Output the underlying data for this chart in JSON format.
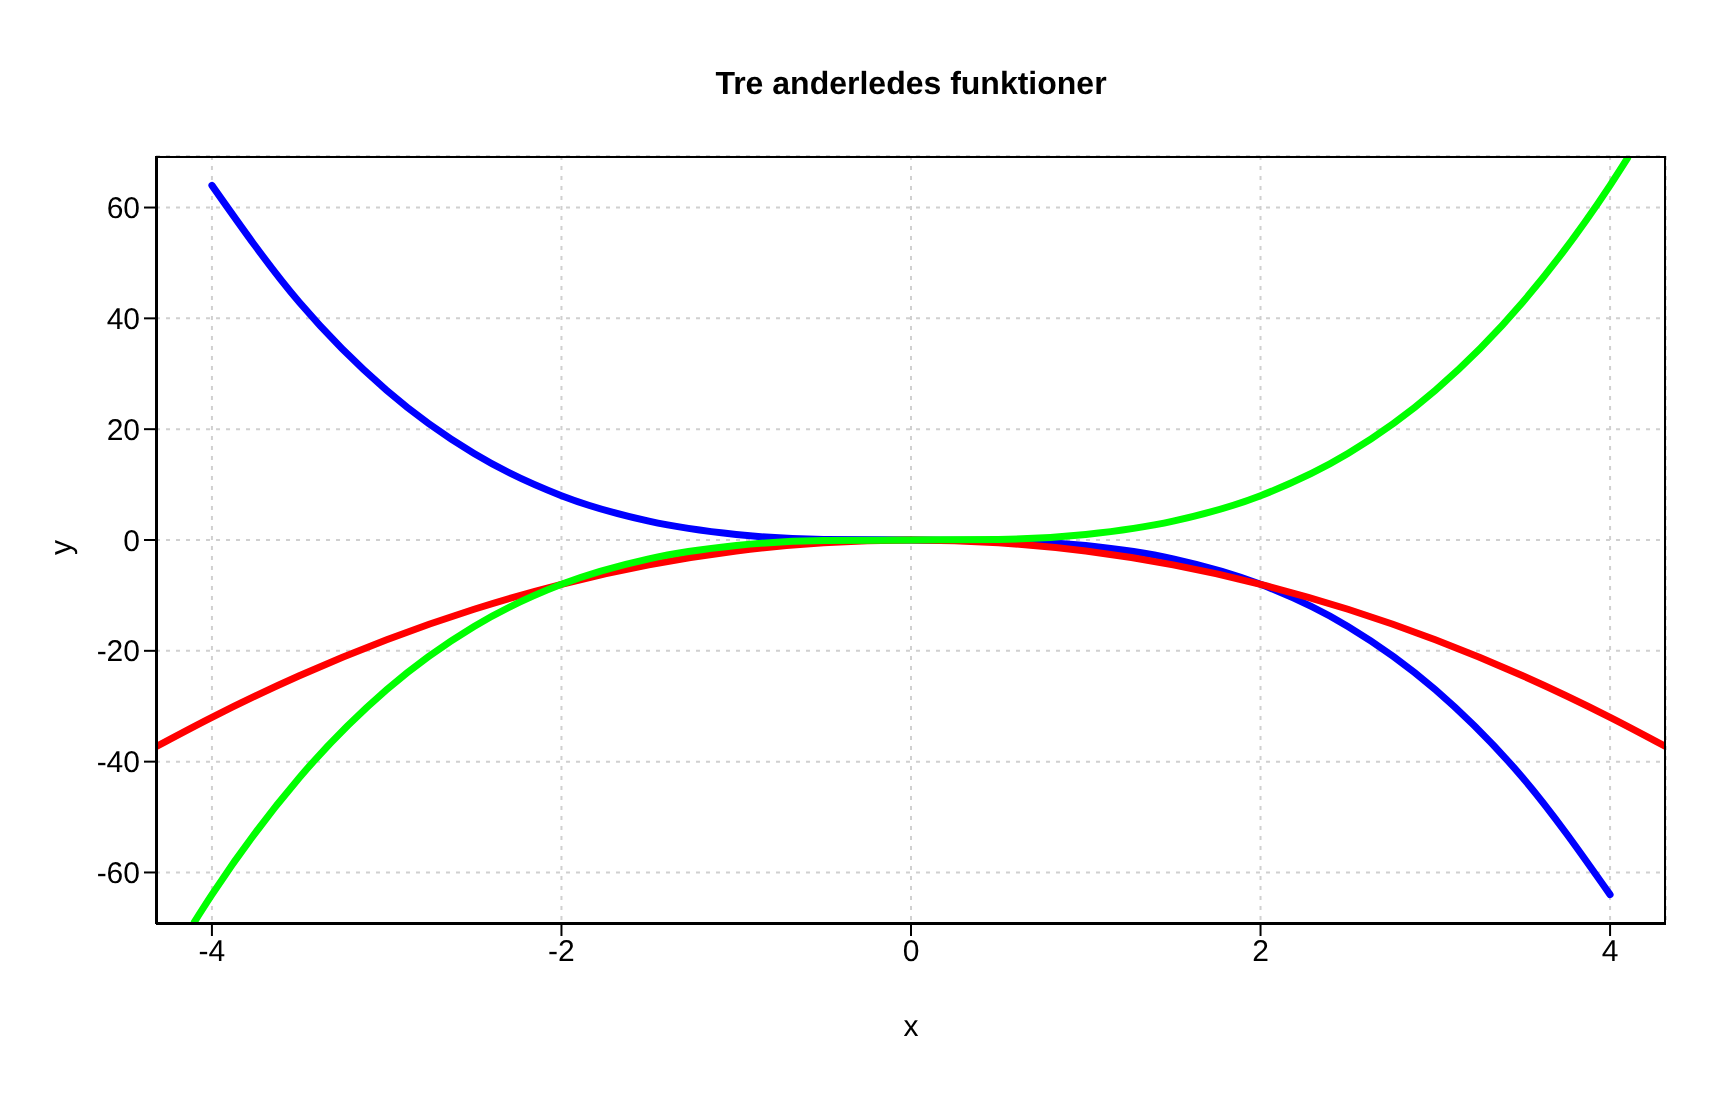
{
  "chart_data": {
    "type": "line",
    "title": "Tre anderledes funktioner",
    "xlabel": "x",
    "ylabel": "y",
    "xlim": [
      -4.32,
      4.32
    ],
    "xticks": [
      -4,
      -2,
      0,
      2,
      4
    ],
    "ylim": [
      -69.3,
      69.3
    ],
    "yticks": [
      -60,
      -40,
      -20,
      0,
      20,
      40,
      60
    ],
    "grid": true,
    "legend": false,
    "marker": "none",
    "line_style": "solid",
    "series": [
      {
        "color": "#0000ff",
        "x": [
          -4,
          -3.5,
          -3,
          -2.5,
          -2,
          -1.5,
          -1,
          -0.5,
          0,
          0.5,
          1,
          1.5,
          2,
          2.5,
          3,
          3.5,
          4
        ],
        "values": [
          64,
          42.9,
          27,
          15.6,
          8,
          3.4,
          1,
          0.1,
          0,
          -0.1,
          -1,
          -3.4,
          -8,
          -15.6,
          -27,
          -42.9,
          -64
        ]
      },
      {
        "color": "#ff0000",
        "x": [
          -4.32,
          -4,
          -3.5,
          -3,
          -2.5,
          -2,
          -1.5,
          -1,
          -0.5,
          0,
          0.5,
          1,
          1.5,
          2,
          2.5,
          3,
          3.5,
          4,
          4.32
        ],
        "values": [
          -37.3,
          -32,
          -24.5,
          -18,
          -12.5,
          -8,
          -4.5,
          -2,
          -0.5,
          0,
          -0.5,
          -2,
          -4.5,
          -8,
          -12.5,
          -18,
          -24.5,
          -32,
          -37.3
        ]
      },
      {
        "color": "#00ff00",
        "x": [
          -4.1,
          -4,
          -3.5,
          -3,
          -2.5,
          -2,
          -1.5,
          -1,
          -0.5,
          0,
          0.5,
          1,
          1.5,
          2,
          2.5,
          3,
          3.5,
          4,
          4.1
        ],
        "values": [
          -68.9,
          -64,
          -42.9,
          -27,
          -15.6,
          -8,
          -3.4,
          -1,
          -0.1,
          0,
          0.1,
          1,
          3.4,
          8,
          15.6,
          27,
          42.9,
          64,
          68.9
        ]
      }
    ]
  }
}
